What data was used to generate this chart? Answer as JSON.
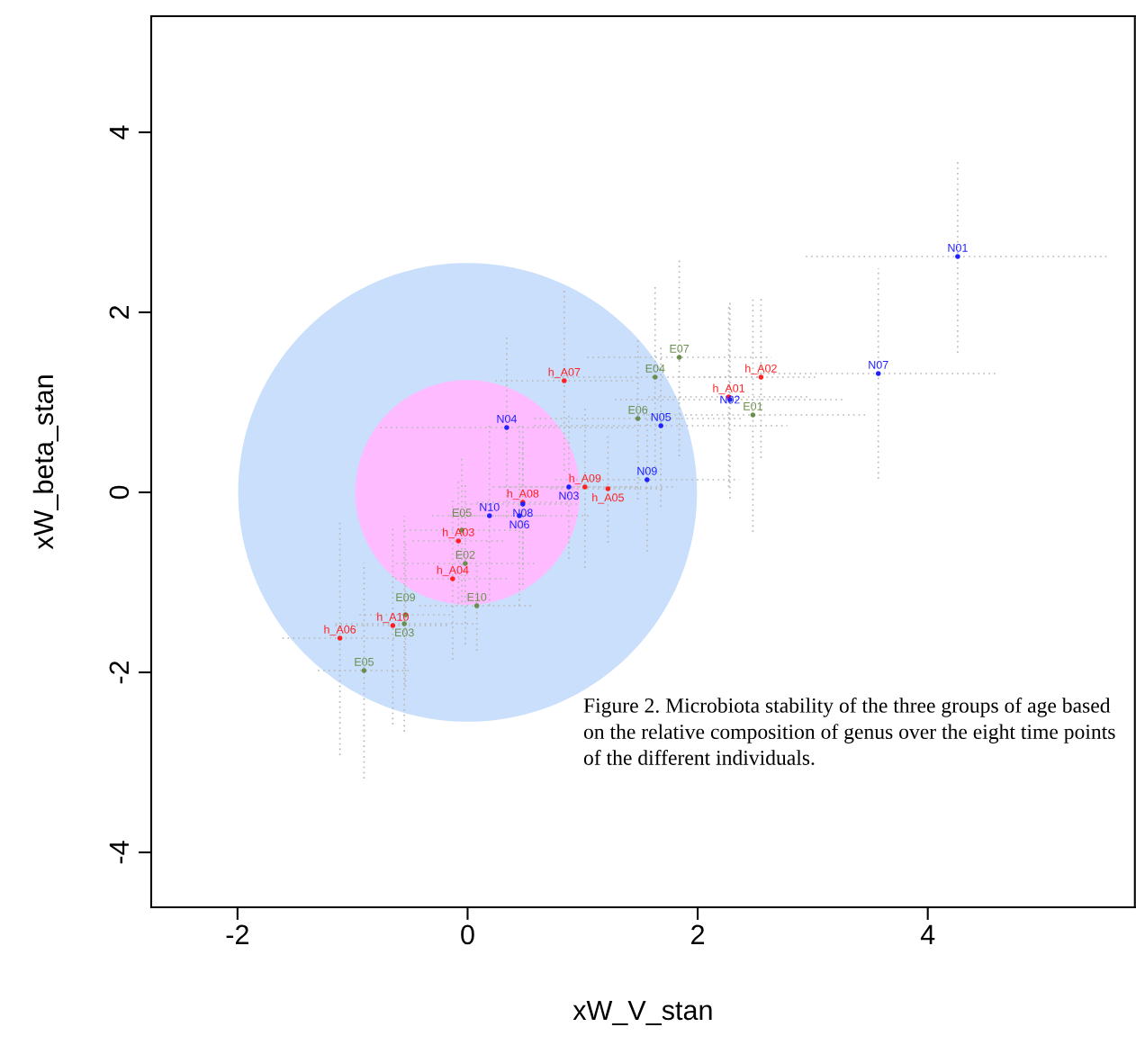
{
  "chart_data": {
    "type": "scatter",
    "xlabel": "xW_V_stan",
    "ylabel": "xW_beta_stan",
    "xlim": [
      -2.75,
      5.8
    ],
    "ylim": [
      -4.61,
      5.29
    ],
    "xticks": [
      -2,
      0,
      2,
      4
    ],
    "yticks": [
      -4,
      -2,
      0,
      2,
      4
    ],
    "grid": false,
    "legend": false,
    "annotations": [
      "Figure 2. Microbiota stability of the three groups of age based on the relative composition of genus over the eight time points of the different individuals."
    ],
    "series": [
      {
        "type": "bubble",
        "colors": [
          "#c9dffb",
          "#ffbbff"
        ],
        "x": [
          0,
          0
        ],
        "values": [
          0,
          0
        ],
        "sizes": [
          1,
          0.24
        ]
      },
      {
        "color": "#ff2020",
        "marker": "circle",
        "x": [
          0.84,
          2.55,
          2.27,
          1.02,
          1.22,
          0.48,
          -0.08,
          -0.13,
          -0.65,
          -1.11
        ],
        "values": [
          1.24,
          1.28,
          1.06,
          0.06,
          0.04,
          -0.11,
          -0.54,
          -0.96,
          -1.48,
          -1.62
        ],
        "value_labels": [
          "h_A07",
          "h_A02",
          "h_A01",
          "h_A09",
          "h_A05",
          "h_A08",
          "h_A03",
          "h_A04",
          "h_A10",
          "h_A06"
        ],
        "xerrors": [
          0.6,
          0.5,
          0.7,
          0.8,
          0.5,
          0.4,
          0.4,
          0.5,
          0.5,
          0.5
        ],
        "errors": [
          1.0,
          0.9,
          1.0,
          0.9,
          0.6,
          0.7,
          0.7,
          0.9,
          1.1,
          1.3
        ]
      },
      {
        "color": "#2020ff",
        "marker": "circle",
        "x": [
          4.26,
          3.57,
          2.28,
          1.68,
          0.34,
          1.56,
          0.88,
          0.48,
          0.19,
          0.45
        ],
        "values": [
          2.62,
          1.32,
          1.03,
          0.74,
          0.72,
          0.14,
          0.06,
          -0.13,
          -0.26,
          -0.26
        ],
        "value_labels": [
          "N01",
          "N07",
          "N02",
          "N05",
          "N04",
          "N09",
          "N03",
          "N08",
          "N10",
          "N06"
        ],
        "xerrors": [
          1.32,
          1.05,
          1.0,
          1.1,
          1.1,
          0.8,
          0.6,
          0.5,
          0.5,
          0.6
        ],
        "errors": [
          1.07,
          1.17,
          1.1,
          0.9,
          1.0,
          0.8,
          0.8,
          0.9,
          1.0,
          1.0
        ]
      },
      {
        "color": "#6b8e4e",
        "marker": "circle",
        "x": [
          1.84,
          1.63,
          2.48,
          1.48,
          -0.05,
          -0.02,
          0.08,
          -0.54,
          -0.55,
          -0.9
        ],
        "values": [
          1.5,
          1.28,
          0.86,
          0.82,
          -0.42,
          -0.79,
          -1.26,
          -1.36,
          -1.46,
          -1.98
        ],
        "value_labels": [
          "E07",
          "E04",
          "E01",
          "E06",
          "E05",
          "E02",
          "E10",
          "E09",
          "E03",
          "E05"
        ],
        "xerrors": [
          0.8,
          0.9,
          1.0,
          0.9,
          0.5,
          0.6,
          0.5,
          0.4,
          0.6,
          0.4
        ],
        "errors": [
          1.1,
          1.0,
          1.3,
          0.9,
          0.8,
          0.9,
          0.5,
          0.8,
          1.2,
          1.2
        ]
      }
    ]
  }
}
